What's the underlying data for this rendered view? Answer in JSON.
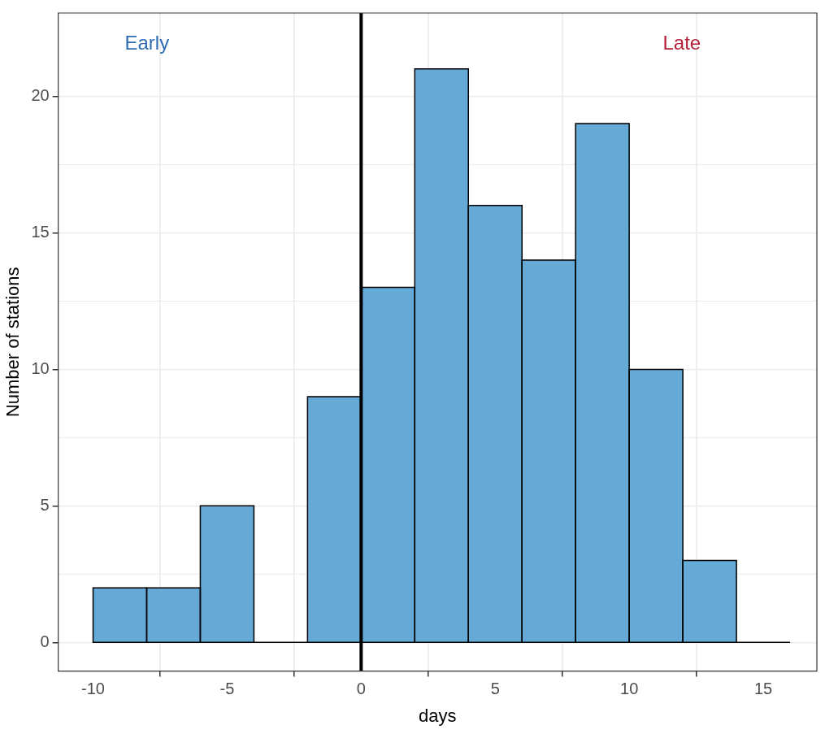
{
  "chart_data": {
    "type": "histogram",
    "xlabel": "days",
    "ylabel": "Number of stations",
    "bins": [
      -10,
      -8,
      -6,
      -4,
      -2,
      0,
      2,
      4,
      6,
      8,
      10,
      12,
      14,
      16
    ],
    "values": [
      2,
      2,
      5,
      0,
      9,
      13,
      21,
      16,
      14,
      19,
      10,
      3,
      0
    ],
    "color": "#65a9d7",
    "xlim": [
      -11.3,
      17.0
    ],
    "xticks": [
      -10,
      -5,
      0,
      5,
      10,
      15
    ],
    "ylim": [
      -1.05,
      23.05
    ],
    "yticks": [
      0,
      5,
      10,
      15,
      20
    ],
    "grid": true,
    "ref_lines": [
      {
        "axis": "x",
        "value": 0,
        "color": "#000000"
      }
    ],
    "annotations": [
      "Early",
      "Late"
    ]
  }
}
